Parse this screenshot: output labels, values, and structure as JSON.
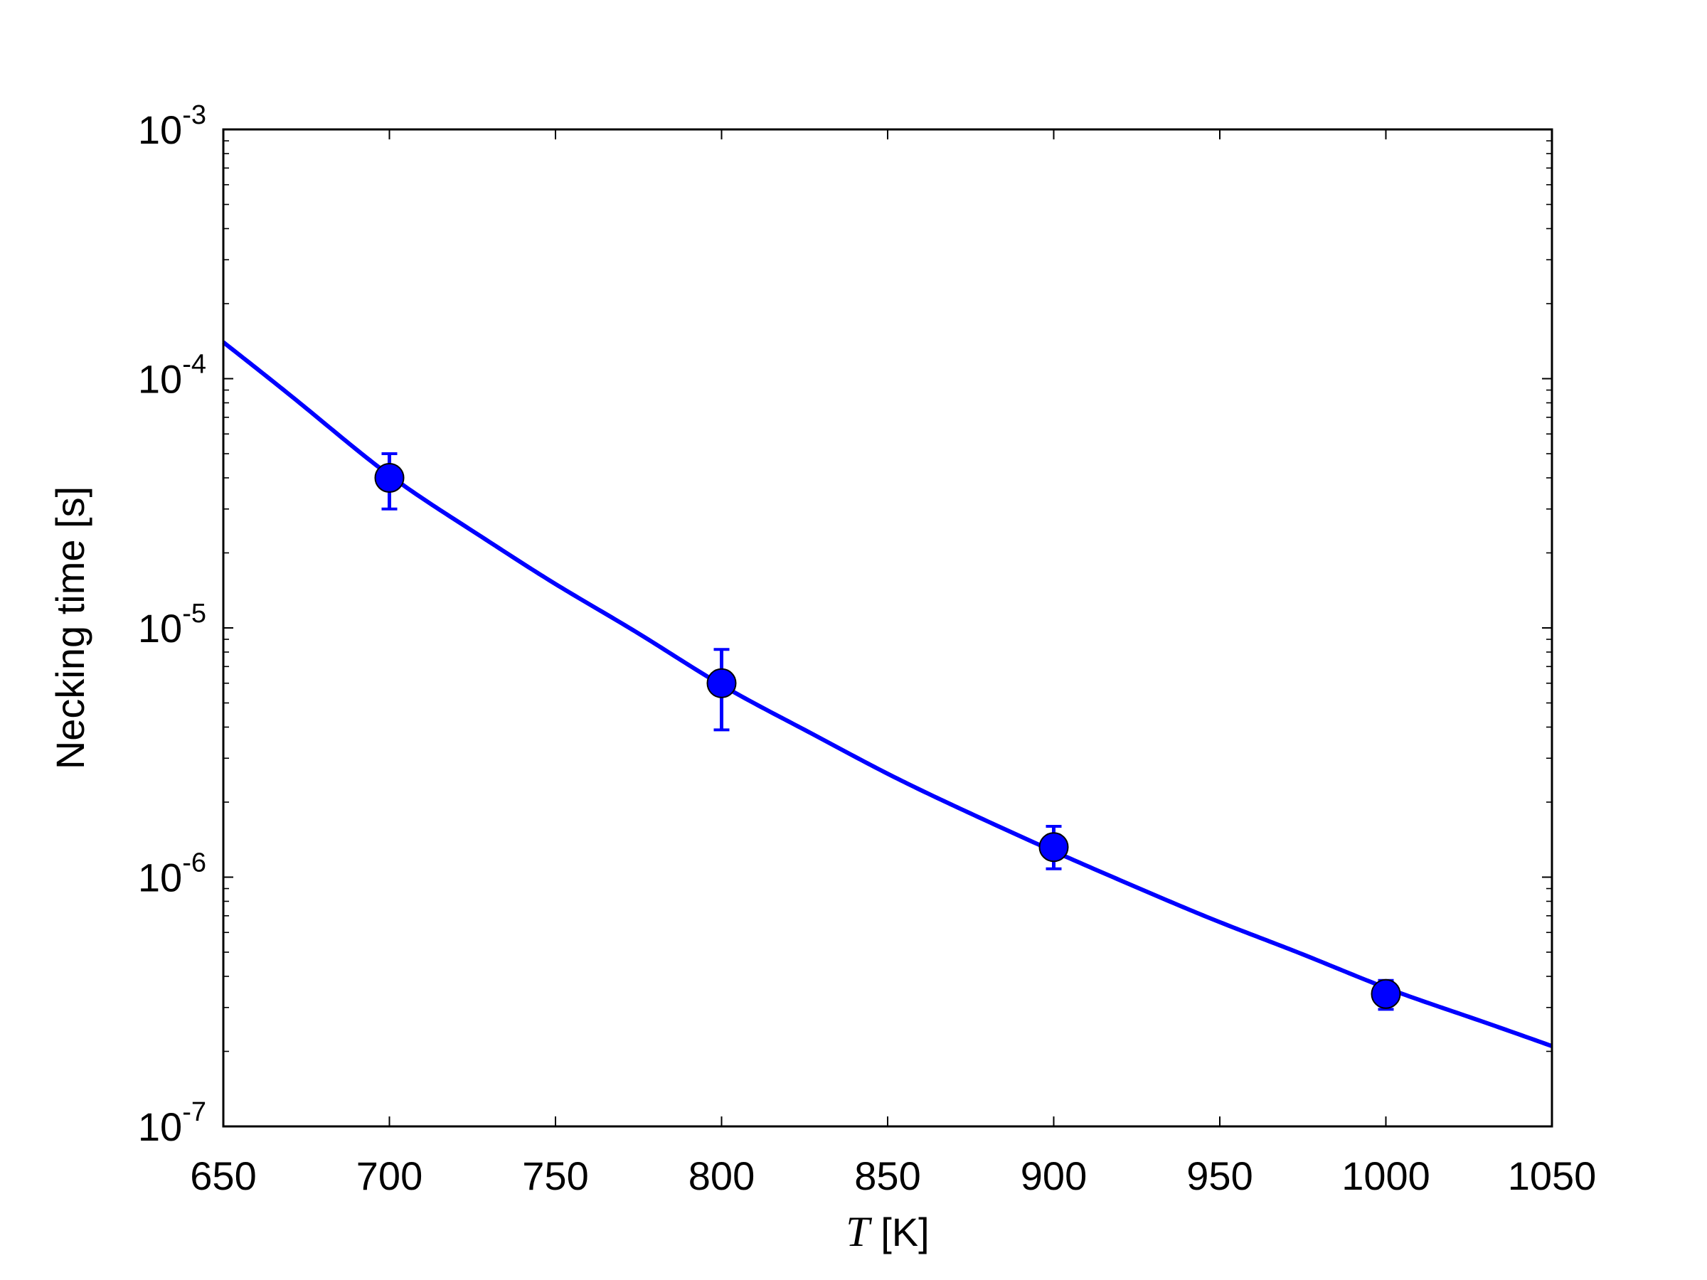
{
  "chart_data": {
    "type": "scatter",
    "title": "",
    "xlabel_symbol": "T",
    "xlabel_unit": " [K]",
    "ylabel": "Necking time [s]",
    "xlim": [
      650,
      1050
    ],
    "ylim": [
      1e-07,
      0.001
    ],
    "yscale": "log",
    "grid": false,
    "legend": "none",
    "x_ticks": [
      "650",
      "700",
      "750",
      "800",
      "850",
      "900",
      "950",
      "1000",
      "1050"
    ],
    "y_ticks": [
      {
        "base": "10",
        "exp": "-3",
        "value": 0.001
      },
      {
        "base": "10",
        "exp": "-4",
        "value": 0.0001
      },
      {
        "base": "10",
        "exp": "-5",
        "value": 1e-05
      },
      {
        "base": "10",
        "exp": "-6",
        "value": 1e-06
      },
      {
        "base": "10",
        "exp": "-7",
        "value": 1e-07
      }
    ],
    "series": [
      {
        "kind": "points_with_errorbars",
        "color": "#0000ff",
        "x": [
          700,
          800,
          900,
          1000
        ],
        "y": [
          4e-05,
          6e-06,
          1.32e-06,
          3.4e-07
        ],
        "y_low": [
          3e-05,
          3.9e-06,
          1.08e-06,
          2.95e-07
        ],
        "y_high": [
          5e-05,
          8.2e-06,
          1.6e-06,
          3.85e-07
        ]
      },
      {
        "kind": "fit_line",
        "color": "#0000ff",
        "x": [
          650,
          675,
          700,
          725,
          750,
          775,
          800,
          825,
          850,
          875,
          900,
          925,
          950,
          975,
          1000,
          1025,
          1050
        ],
        "y": [
          0.00014,
          7.6e-05,
          4.1e-05,
          2.45e-05,
          1.5e-05,
          9.5e-06,
          5.9e-06,
          3.9e-06,
          2.6e-06,
          1.8e-06,
          1.27e-06,
          9.1e-07,
          6.6e-07,
          4.9e-07,
          3.6e-07,
          2.75e-07,
          2.1e-07
        ]
      }
    ]
  }
}
